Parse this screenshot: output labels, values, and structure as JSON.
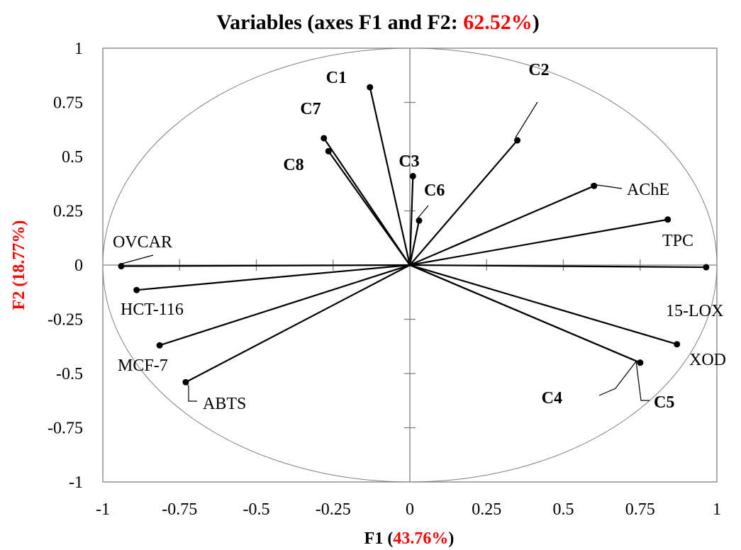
{
  "chart_data": {
    "type": "scatter",
    "subtype": "pca-correlation-circle",
    "title": {
      "prefix": "Variables (axes F1 and F2: ",
      "highlight": "62.52%",
      "suffix": ")"
    },
    "xlabel": {
      "prefix": "F1 (",
      "highlight": "43.76%",
      "suffix": ")"
    },
    "ylabel": {
      "prefix": "F2 (",
      "highlight": "18.77%",
      "suffix": ")"
    },
    "xlim": [
      -1,
      1
    ],
    "ylim": [
      -1,
      1
    ],
    "xticks": [
      -1,
      -0.75,
      -0.5,
      -0.25,
      0,
      0.25,
      0.5,
      0.75,
      1
    ],
    "yticks": [
      -1,
      -0.75,
      -0.5,
      -0.25,
      0,
      0.25,
      0.5,
      0.75,
      1
    ],
    "xtick_labels": [
      "-1",
      "-0.75",
      "-0.5",
      "-0.25",
      "0",
      "0.25",
      "0.5",
      "0.75",
      "1"
    ],
    "ytick_labels": [
      "-1",
      "-0.75",
      "-0.5",
      "-0.25",
      "0",
      "0.25",
      "0.5",
      "0.75",
      "1"
    ],
    "unit_circle": true,
    "grid": false,
    "colors": {
      "line": "#000000",
      "highlight": "#ff0000",
      "axis": "#808080",
      "c4_vector": "#5a1010"
    },
    "points": [
      {
        "label": "C1",
        "x": -0.13,
        "y": 0.82,
        "bold": true
      },
      {
        "label": "C2",
        "x": 0.35,
        "y": 0.575,
        "bold": true
      },
      {
        "label": "C3",
        "x": 0.01,
        "y": 0.41,
        "bold": true
      },
      {
        "label": "C4",
        "x": 0.75,
        "y": -0.45,
        "bold": true
      },
      {
        "label": "C5",
        "x": 0.75,
        "y": -0.45,
        "bold": true
      },
      {
        "label": "C6",
        "x": 0.03,
        "y": 0.205,
        "bold": true
      },
      {
        "label": "C7",
        "x": -0.28,
        "y": 0.585,
        "bold": true
      },
      {
        "label": "C8",
        "x": -0.265,
        "y": 0.525,
        "bold": true
      },
      {
        "label": "AChE",
        "x": 0.6,
        "y": 0.365,
        "bold": false
      },
      {
        "label": "TPC",
        "x": 0.84,
        "y": 0.21,
        "bold": false
      },
      {
        "label": "15-LOX",
        "x": 0.965,
        "y": -0.01,
        "bold": false
      },
      {
        "label": "XOD",
        "x": 0.87,
        "y": -0.365,
        "bold": false
      },
      {
        "label": "OVCAR",
        "x": -0.94,
        "y": -0.005,
        "bold": false
      },
      {
        "label": "HCT-116",
        "x": -0.89,
        "y": -0.115,
        "bold": false
      },
      {
        "label": "MCF-7",
        "x": -0.815,
        "y": -0.37,
        "bold": false
      },
      {
        "label": "ABTS",
        "x": -0.73,
        "y": -0.54,
        "bold": false
      }
    ]
  }
}
